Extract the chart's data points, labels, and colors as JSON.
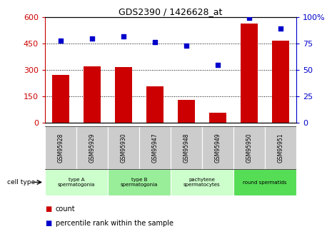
{
  "title": "GDS2390 / 1426628_at",
  "samples": [
    "GSM95928",
    "GSM95929",
    "GSM95930",
    "GSM95947",
    "GSM95948",
    "GSM95949",
    "GSM95950",
    "GSM95951"
  ],
  "counts": [
    270,
    322,
    315,
    205,
    128,
    55,
    562,
    468
  ],
  "percentiles": [
    78,
    80,
    82,
    76,
    73,
    55,
    99,
    89
  ],
  "ylim_left": [
    0,
    600
  ],
  "ylim_right": [
    0,
    100
  ],
  "yticks_left": [
    0,
    150,
    300,
    450,
    600
  ],
  "yticks_right": [
    0,
    25,
    50,
    75,
    100
  ],
  "bar_color": "#cc0000",
  "dot_color": "#0000cc",
  "gsm_bg": "#cccccc",
  "cell_groups": [
    {
      "label": "type A\nspermatogonia",
      "start": 0,
      "end": 2,
      "color": "#ccffcc"
    },
    {
      "label": "type B\nspermatogonia",
      "start": 2,
      "end": 4,
      "color": "#99ee99"
    },
    {
      "label": "pachytene\nspermatocytes",
      "start": 4,
      "end": 6,
      "color": "#ccffcc"
    },
    {
      "label": "round spermatids",
      "start": 6,
      "end": 8,
      "color": "#55dd55"
    }
  ],
  "legend_items": [
    {
      "color": "#cc0000",
      "label": "count"
    },
    {
      "color": "#0000cc",
      "label": "percentile rank within the sample"
    }
  ]
}
